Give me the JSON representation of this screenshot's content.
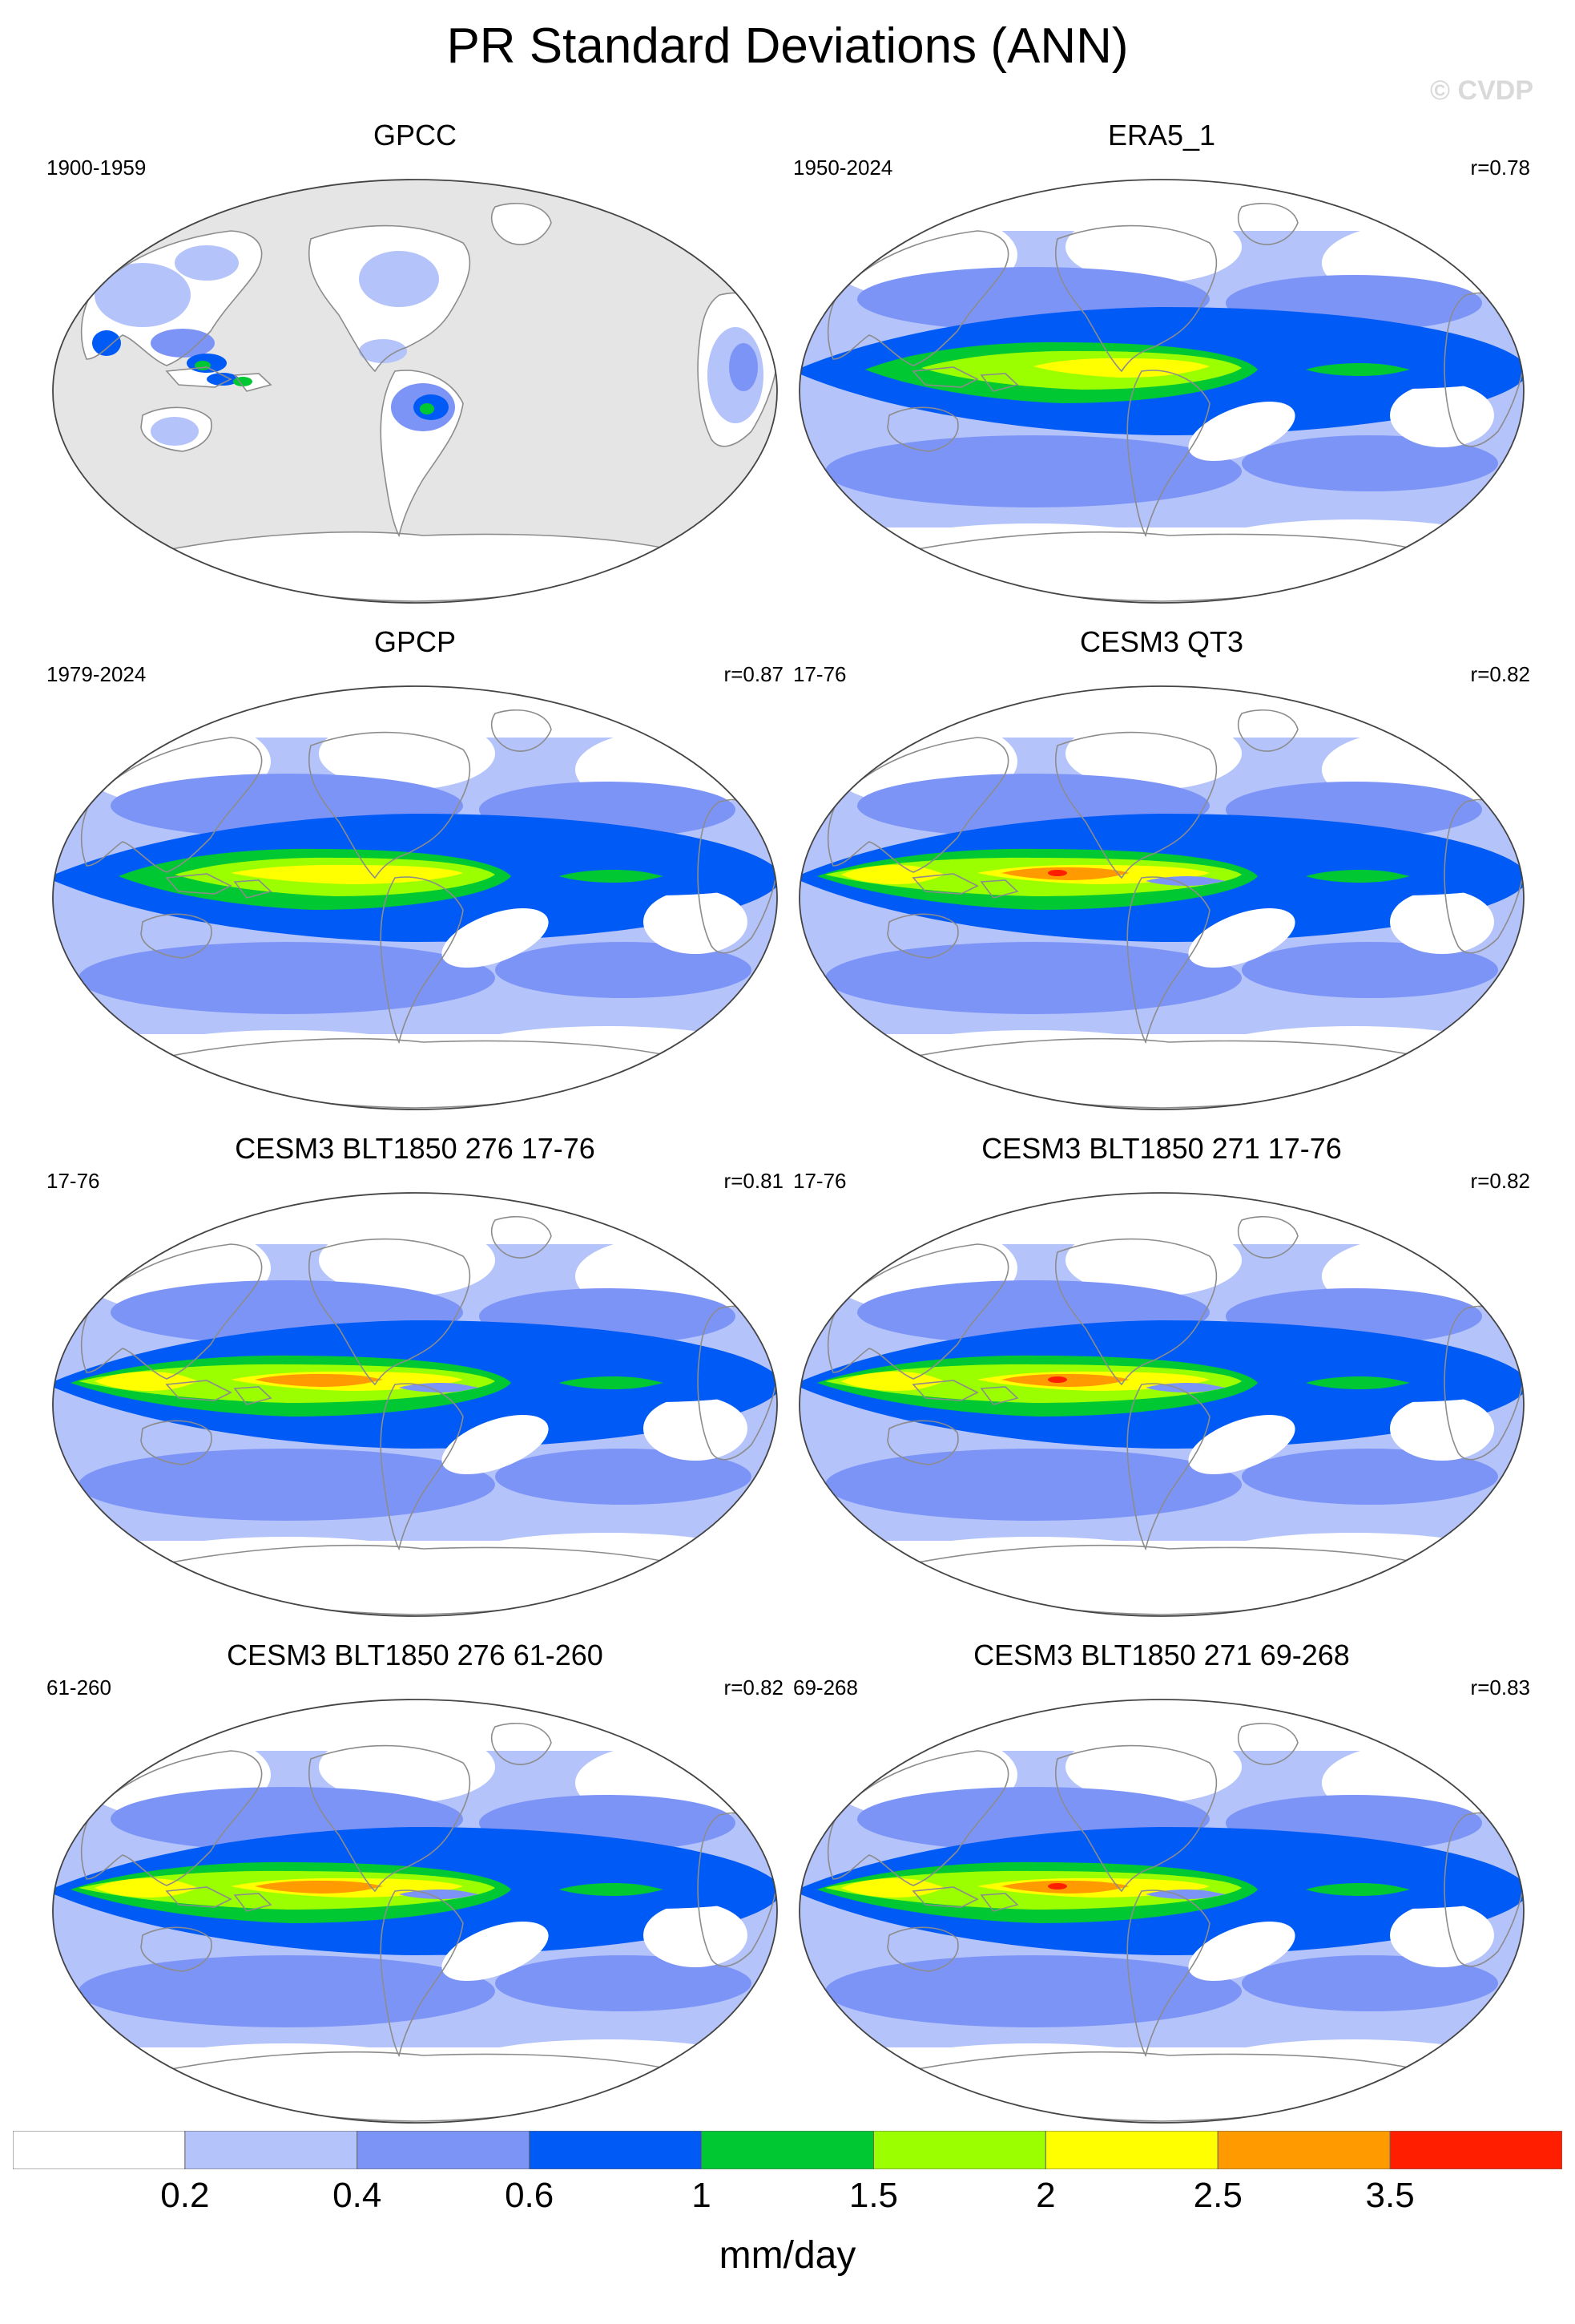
{
  "figure": {
    "title": "PR Standard Deviations (ANN)",
    "watermark": "© CVDP",
    "units": "mm/day"
  },
  "panels": [
    {
      "title": "GPCC",
      "period": "1900-1959",
      "corr": "",
      "dataset_type": "obs_land"
    },
    {
      "title": "ERA5_1",
      "period": "1950-2024",
      "corr": "r=0.78",
      "dataset_type": "reanalysis"
    },
    {
      "title": "GPCP",
      "period": "1979-2024",
      "corr": "r=0.87",
      "dataset_type": "obs"
    },
    {
      "title": "CESM3 QT3",
      "period": "17-76",
      "corr": "r=0.82",
      "dataset_type": "model"
    },
    {
      "title": "CESM3 BLT1850 276 17-76",
      "period": "17-76",
      "corr": "r=0.81",
      "dataset_type": "model"
    },
    {
      "title": "CESM3 BLT1850 271 17-76",
      "period": "17-76",
      "corr": "r=0.82",
      "dataset_type": "model"
    },
    {
      "title": "CESM3 BLT1850 276 61-260",
      "period": "61-260",
      "corr": "r=0.82",
      "dataset_type": "model"
    },
    {
      "title": "CESM3 BLT1850 271 69-268",
      "period": "69-268",
      "corr": "r=0.83",
      "dataset_type": "model"
    }
  ],
  "colorbar": {
    "labels": [
      "0.2",
      "0.4",
      "0.6",
      "1",
      "1.5",
      "2",
      "2.5",
      "3.5"
    ],
    "colors": [
      "#ffffff",
      "#b4c3fa",
      "#7d94f7",
      "#005af5",
      "#00c832",
      "#9bff00",
      "#ffff00",
      "#ff9b00",
      "#ff1e00"
    ]
  },
  "colors": {
    "land_missing": "#e5e5e5",
    "coastline": "#8c8c8c"
  }
}
